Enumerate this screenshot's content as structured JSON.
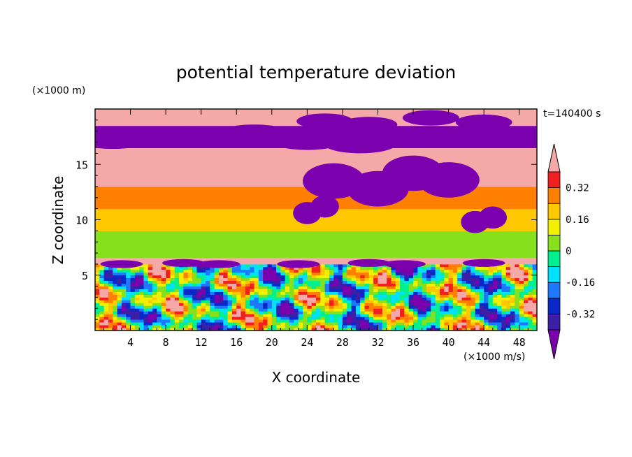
{
  "chart_data": {
    "type": "heatmap",
    "title": "potential temperature deviation",
    "xlabel": "X coordinate",
    "ylabel": "Z coordinate",
    "x_unit_label": "(×1000 m/s)",
    "y_unit_label": "(×1000 m)",
    "time_label": "t=140400 s",
    "xlim": [
      0,
      50
    ],
    "ylim": [
      0,
      20
    ],
    "x_ticks": [
      4,
      8,
      12,
      16,
      20,
      24,
      28,
      32,
      36,
      40,
      44,
      48
    ],
    "y_ticks": [
      5,
      10,
      15
    ],
    "colorbar": {
      "levels": [
        -0.4,
        -0.32,
        -0.24,
        -0.16,
        -0.08,
        0,
        0.08,
        0.16,
        0.24,
        0.32,
        0.4
      ],
      "labels": [
        "0.32",
        "0.16",
        "0",
        "-0.16",
        "-0.32"
      ],
      "label_values": [
        0.32,
        0.16,
        0,
        -0.16,
        -0.32
      ],
      "colors": [
        "#7b00ae",
        "#3c1fa6",
        "#0a28c8",
        "#1e78ff",
        "#00e0ff",
        "#00f090",
        "#86e01c",
        "#f0f000",
        "#ffc800",
        "#ff8000",
        "#f02020",
        "#f5a8a8"
      ],
      "extend": "both"
    },
    "bands": [
      {
        "z_range": [
          0,
          6
        ],
        "description": "mixed turbulent layer",
        "approx_value_range": [
          -0.4,
          0.4
        ]
      },
      {
        "z_range": [
          6,
          6.6
        ],
        "approx_value": 0.45
      },
      {
        "z_range": [
          6.6,
          9
        ],
        "approx_value": 0.02
      },
      {
        "z_range": [
          9,
          11
        ],
        "approx_value": 0.16
      },
      {
        "z_range": [
          11,
          13
        ],
        "approx_value": 0.28
      },
      {
        "z_range": [
          13,
          16.5
        ],
        "approx_value": 0.45
      },
      {
        "z_range": [
          16.5,
          18.5
        ],
        "approx_value": -0.45
      },
      {
        "z_range": [
          18.5,
          20
        ],
        "approx_value": 0.45
      }
    ]
  }
}
